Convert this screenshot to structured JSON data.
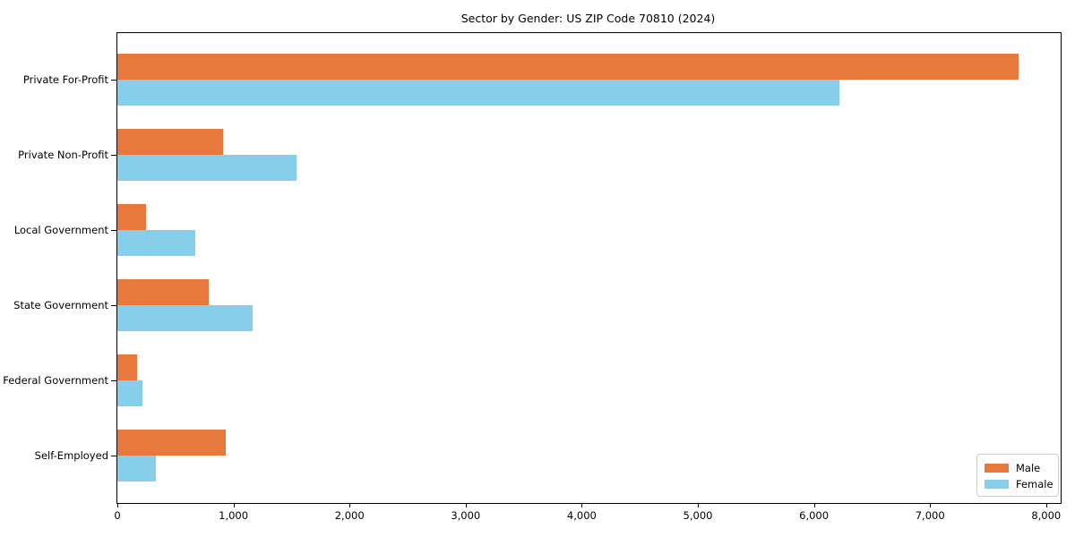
{
  "figure": {
    "title": "Sector by Gender: US ZIP Code 70810 (2024)"
  },
  "chart_data": {
    "type": "bar",
    "orientation": "horizontal",
    "title": "Sector by Gender: US ZIP Code 70810 (2024)",
    "categories": [
      "Private For-Profit",
      "Private Non-Profit",
      "Local Government",
      "State Government",
      "Federal Government",
      "Self-Employed"
    ],
    "series": [
      {
        "name": "Male",
        "color": "#e8793d",
        "values": [
          7760,
          910,
          250,
          790,
          170,
          935
        ]
      },
      {
        "name": "Female",
        "color": "#87ceeb",
        "values": [
          6220,
          1540,
          670,
          1165,
          215,
          335
        ]
      }
    ],
    "xlabel": "",
    "ylabel": "",
    "xlim": [
      0,
      8125
    ],
    "x_ticks": [
      0,
      1000,
      2000,
      3000,
      4000,
      5000,
      6000,
      7000,
      8000
    ],
    "x_tick_labels": [
      "0",
      "1,000",
      "2,000",
      "3,000",
      "4,000",
      "5,000",
      "6,000",
      "7,000",
      "8,000"
    ],
    "grid": false,
    "legend": {
      "position": "lower right",
      "entries": [
        "Male",
        "Female"
      ]
    }
  }
}
